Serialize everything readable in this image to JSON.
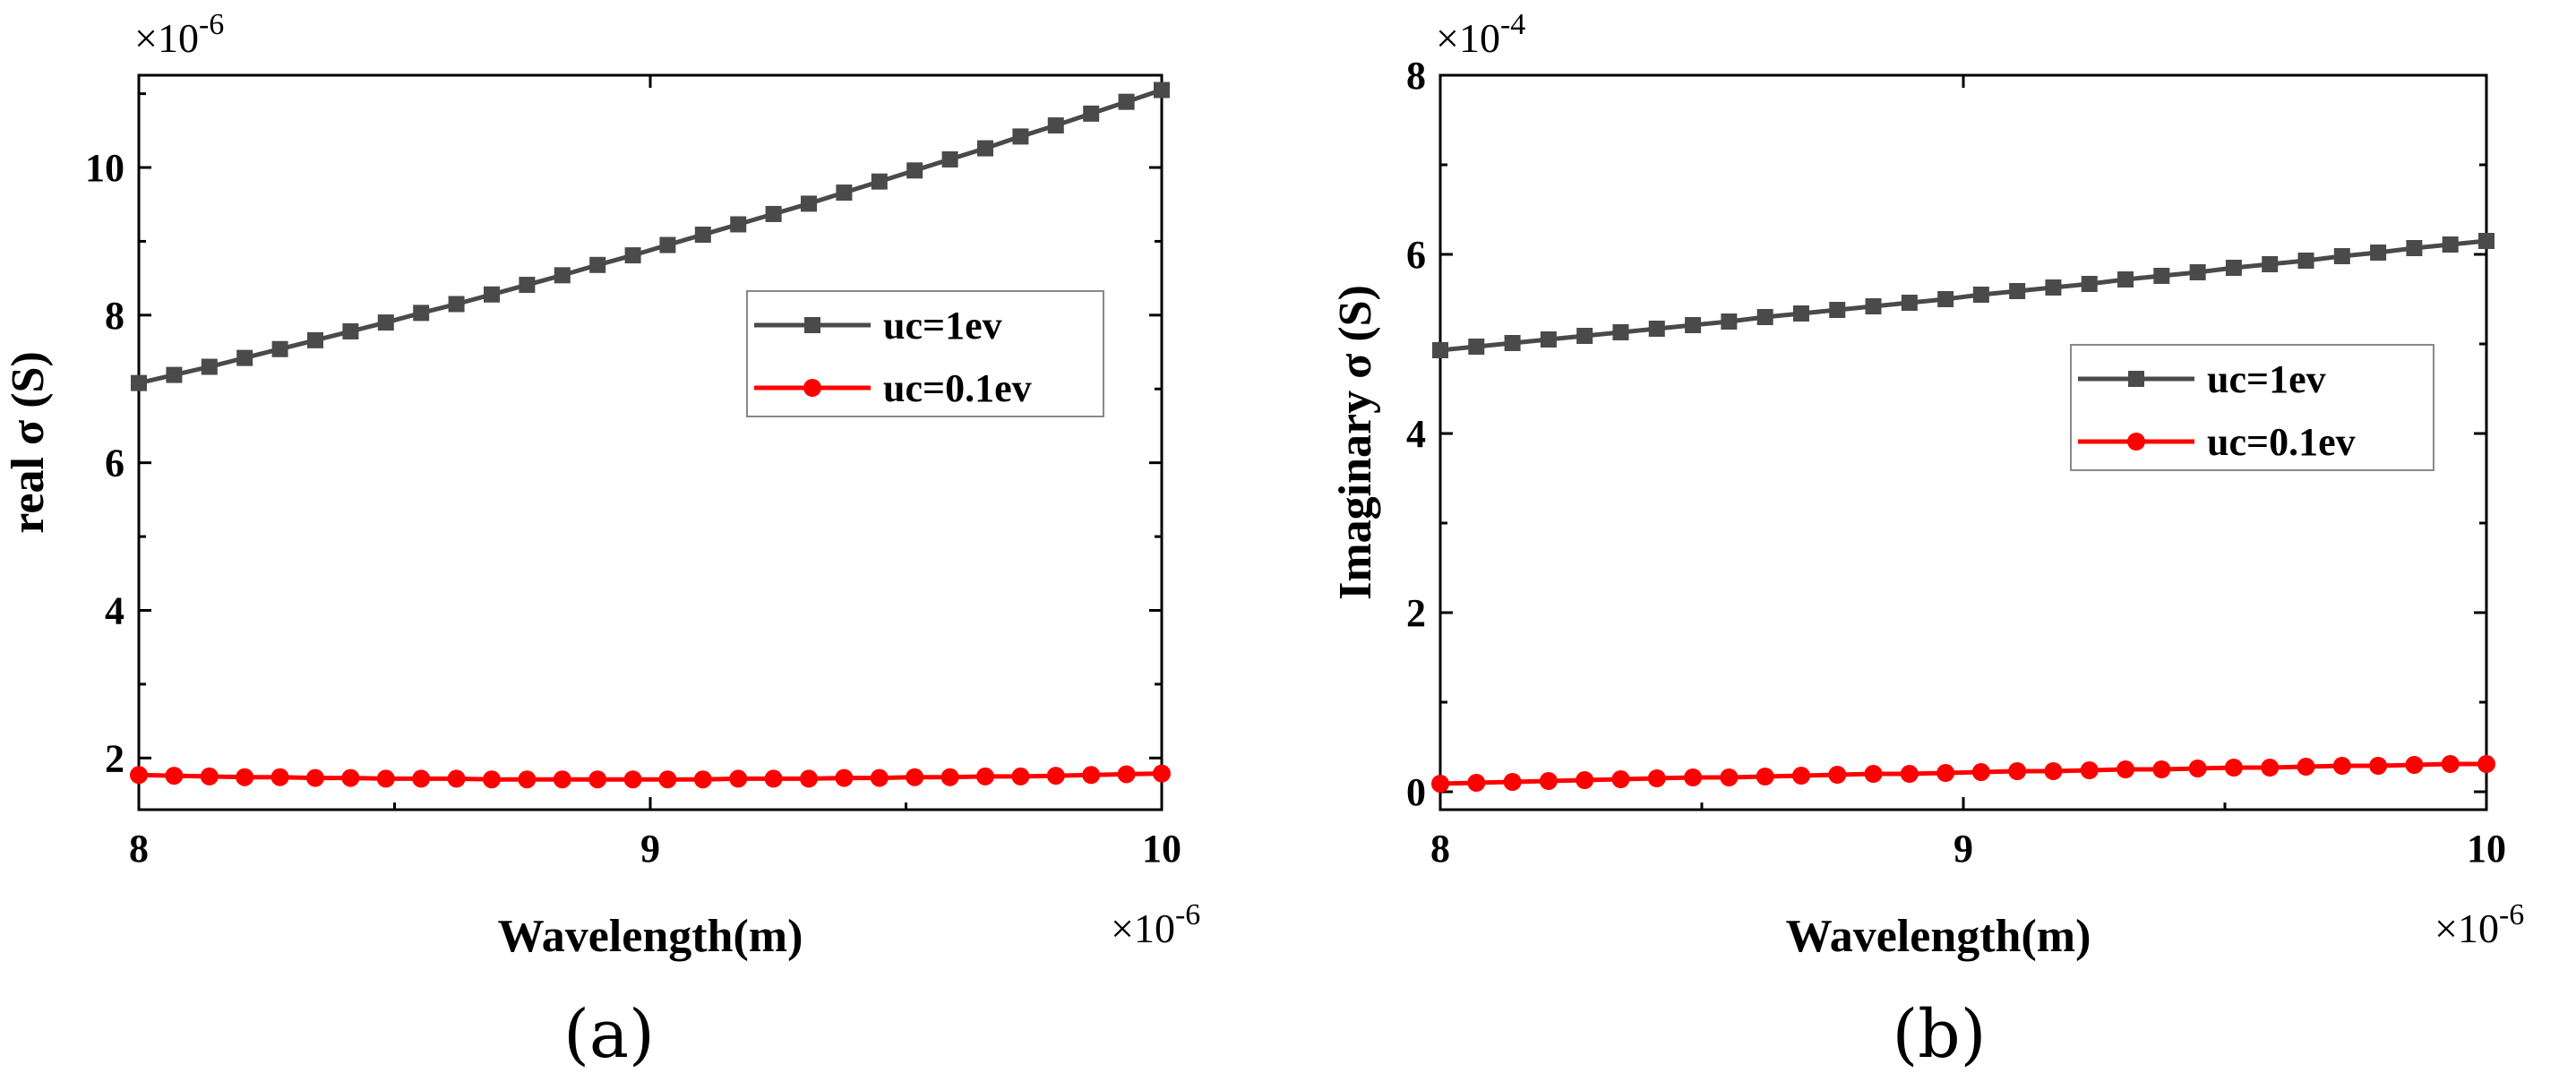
{
  "chart_data": [
    {
      "type": "line",
      "panel_label": "(a)",
      "xlabel": "Wavelength(m)",
      "ylabel": "real σ (S)",
      "x_exponent_label": "×10",
      "x_exponent_power": "-6",
      "y_exponent_label": "×10",
      "y_exponent_power": "-6",
      "xlim": [
        8,
        10
      ],
      "ylim": [
        1.3,
        11.25
      ],
      "xticks": [
        8,
        9,
        10
      ],
      "xtick_labels": [
        "8",
        "9",
        "10"
      ],
      "yticks": [
        2,
        4,
        6,
        8,
        10
      ],
      "ytick_labels": [
        "2",
        "4",
        "6",
        "8",
        "10"
      ],
      "legend_position": "upper-right",
      "series": [
        {
          "name": "uc=1ev",
          "color": "#4a4a4a",
          "marker": "square",
          "x": [
            8.0,
            8.069,
            8.138,
            8.207,
            8.276,
            8.345,
            8.414,
            8.483,
            8.552,
            8.621,
            8.69,
            8.759,
            8.828,
            8.897,
            8.966,
            9.034,
            9.103,
            9.172,
            9.241,
            9.31,
            9.379,
            9.448,
            9.517,
            9.586,
            9.655,
            9.724,
            9.793,
            9.862,
            9.931,
            10.0
          ],
          "y": [
            7.08,
            7.19,
            7.3,
            7.42,
            7.54,
            7.66,
            7.78,
            7.9,
            8.03,
            8.15,
            8.28,
            8.41,
            8.54,
            8.68,
            8.81,
            8.95,
            9.09,
            9.23,
            9.37,
            9.51,
            9.66,
            9.81,
            9.96,
            10.11,
            10.26,
            10.42,
            10.57,
            10.73,
            10.89,
            11.05
          ]
        },
        {
          "name": "uc=0.1ev",
          "color": "#ff0000",
          "marker": "circle",
          "x": [
            8.0,
            8.069,
            8.138,
            8.207,
            8.276,
            8.345,
            8.414,
            8.483,
            8.552,
            8.621,
            8.69,
            8.759,
            8.828,
            8.897,
            8.966,
            9.034,
            9.103,
            9.172,
            9.241,
            9.31,
            9.379,
            9.448,
            9.517,
            9.586,
            9.655,
            9.724,
            9.793,
            9.862,
            9.931,
            10.0
          ],
          "y": [
            1.77,
            1.76,
            1.75,
            1.74,
            1.74,
            1.73,
            1.73,
            1.72,
            1.72,
            1.72,
            1.71,
            1.71,
            1.71,
            1.71,
            1.71,
            1.71,
            1.71,
            1.72,
            1.72,
            1.72,
            1.73,
            1.73,
            1.74,
            1.74,
            1.75,
            1.75,
            1.76,
            1.77,
            1.78,
            1.79
          ]
        }
      ]
    },
    {
      "type": "line",
      "panel_label": "(b)",
      "xlabel": "Wavelength(m)",
      "ylabel": "Imaginary σ (S)",
      "x_exponent_label": "×10",
      "x_exponent_power": "-6",
      "y_exponent_label": "×10",
      "y_exponent_power": "-4",
      "xlim": [
        8,
        10
      ],
      "ylim": [
        -0.2,
        8.0
      ],
      "xticks": [
        8,
        9,
        10
      ],
      "xtick_labels": [
        "8",
        "9",
        "10"
      ],
      "yticks": [
        0,
        2,
        4,
        6,
        8
      ],
      "ytick_labels": [
        "0",
        "2",
        "4",
        "6",
        "8"
      ],
      "legend_position": "upper-right",
      "series": [
        {
          "name": "uc=1ev",
          "color": "#4a4a4a",
          "marker": "square",
          "x": [
            8.0,
            8.069,
            8.138,
            8.207,
            8.276,
            8.345,
            8.414,
            8.483,
            8.552,
            8.621,
            8.69,
            8.759,
            8.828,
            8.897,
            8.966,
            9.034,
            9.103,
            9.172,
            9.241,
            9.31,
            9.379,
            9.448,
            9.517,
            9.586,
            9.655,
            9.724,
            9.793,
            9.862,
            9.931,
            10.0
          ],
          "y": [
            4.93,
            4.97,
            5.01,
            5.05,
            5.09,
            5.13,
            5.17,
            5.21,
            5.25,
            5.3,
            5.34,
            5.38,
            5.42,
            5.46,
            5.5,
            5.55,
            5.59,
            5.63,
            5.67,
            5.72,
            5.76,
            5.8,
            5.85,
            5.89,
            5.93,
            5.98,
            6.02,
            6.07,
            6.11,
            6.15
          ]
        },
        {
          "name": "uc=0.1ev",
          "color": "#ff0000",
          "marker": "circle",
          "x": [
            8.0,
            8.069,
            8.138,
            8.207,
            8.276,
            8.345,
            8.414,
            8.483,
            8.552,
            8.621,
            8.69,
            8.759,
            8.828,
            8.897,
            8.966,
            9.034,
            9.103,
            9.172,
            9.241,
            9.31,
            9.379,
            9.448,
            9.517,
            9.586,
            9.655,
            9.724,
            9.793,
            9.862,
            9.931,
            10.0
          ],
          "y": [
            0.09,
            0.1,
            0.11,
            0.12,
            0.13,
            0.14,
            0.15,
            0.16,
            0.16,
            0.17,
            0.18,
            0.19,
            0.2,
            0.2,
            0.21,
            0.22,
            0.23,
            0.23,
            0.24,
            0.25,
            0.25,
            0.26,
            0.27,
            0.27,
            0.28,
            0.29,
            0.29,
            0.3,
            0.31,
            0.31
          ]
        }
      ]
    }
  ]
}
